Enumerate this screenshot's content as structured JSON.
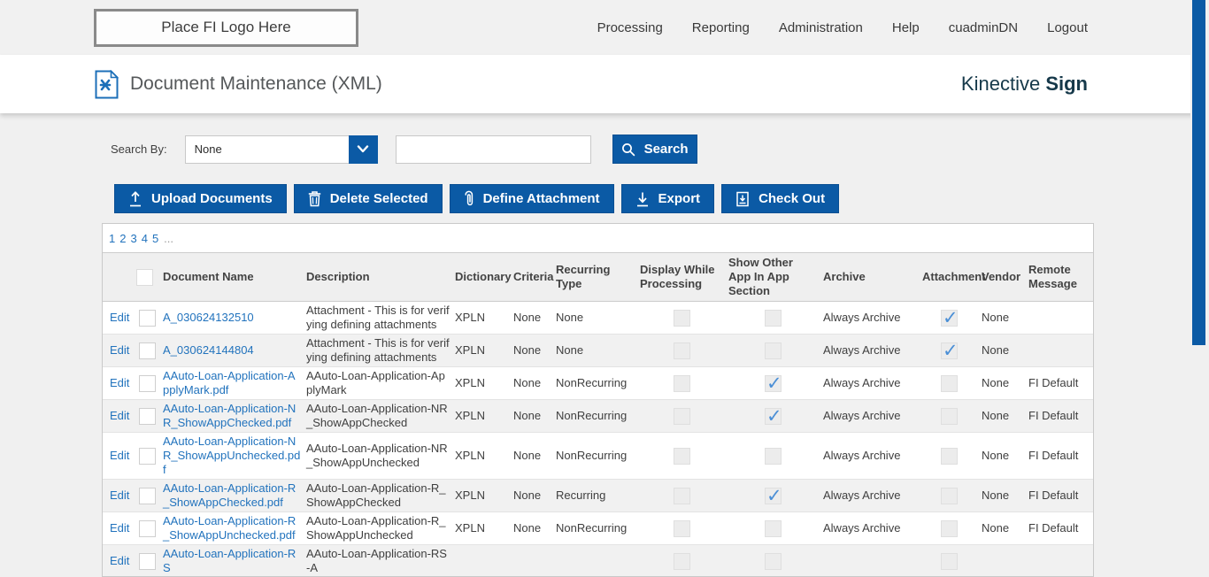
{
  "topbar": {
    "logo_text": "Place FI Logo Here",
    "nav": [
      {
        "label": "Processing"
      },
      {
        "label": "Reporting"
      },
      {
        "label": "Administration"
      },
      {
        "label": "Help"
      },
      {
        "label": "cuadminDN"
      },
      {
        "label": "Logout"
      }
    ]
  },
  "header": {
    "title": "Document Maintenance (XML)",
    "brand_regular": "Kinective",
    "brand_bold": "Sign"
  },
  "search": {
    "label": "Search By:",
    "dropdown_value": "None",
    "input_value": "",
    "button_label": "Search"
  },
  "toolbar": {
    "upload_label": "Upload Documents",
    "delete_label": "Delete Selected",
    "attachment_label": "Define Attachment",
    "export_label": "Export",
    "checkout_label": "Check Out"
  },
  "pagination": {
    "pages": [
      "1",
      "2",
      "3",
      "4",
      "5"
    ],
    "ellipsis": "..."
  },
  "table": {
    "edit_label": "Edit",
    "columns": [
      "",
      "",
      "Document Name",
      "Description",
      "Dictionary",
      "Criteria",
      "Recurring Type",
      "Display While Processing",
      "Show Other App In App Section",
      "Archive",
      "Attachment",
      "Vendor",
      "Remote Message"
    ],
    "rows": [
      {
        "name": "A_030624132510",
        "description": "Attachment - This is for verifying defining attachments",
        "dictionary": "XPLN",
        "criteria": "None",
        "recurring_type": "None",
        "display_while_processing": false,
        "show_other_app": false,
        "archive": "Always Archive",
        "attachment": true,
        "vendor": "None",
        "remote_message": ""
      },
      {
        "name": "A_030624144804",
        "description": "Attachment - This is for verifying defining attachments",
        "dictionary": "XPLN",
        "criteria": "None",
        "recurring_type": "None",
        "display_while_processing": false,
        "show_other_app": false,
        "archive": "Always Archive",
        "attachment": true,
        "vendor": "None",
        "remote_message": ""
      },
      {
        "name": "AAuto-Loan-Application-ApplyMark.pdf",
        "description": "AAuto-Loan-Application-ApplyMark",
        "dictionary": "XPLN",
        "criteria": "None",
        "recurring_type": "NonRecurring",
        "display_while_processing": false,
        "show_other_app": true,
        "archive": "Always Archive",
        "attachment": false,
        "vendor": "None",
        "remote_message": "FI Default"
      },
      {
        "name": "AAuto-Loan-Application-NR_ShowAppChecked.pdf",
        "description": "AAuto-Loan-Application-NR_ShowAppChecked",
        "dictionary": "XPLN",
        "criteria": "None",
        "recurring_type": "NonRecurring",
        "display_while_processing": false,
        "show_other_app": true,
        "archive": "Always Archive",
        "attachment": false,
        "vendor": "None",
        "remote_message": "FI Default"
      },
      {
        "name": "AAuto-Loan-Application-NR_ShowAppUnchecked.pdf",
        "description": "AAuto-Loan-Application-NR_ShowAppUnchecked",
        "dictionary": "XPLN",
        "criteria": "None",
        "recurring_type": "NonRecurring",
        "display_while_processing": false,
        "show_other_app": false,
        "archive": "Always Archive",
        "attachment": false,
        "vendor": "None",
        "remote_message": "FI Default"
      },
      {
        "name": "AAuto-Loan-Application-R_ShowAppChecked.pdf",
        "description": "AAuto-Loan-Application-R_ShowAppChecked",
        "dictionary": "XPLN",
        "criteria": "None",
        "recurring_type": "Recurring",
        "display_while_processing": false,
        "show_other_app": true,
        "archive": "Always Archive",
        "attachment": false,
        "vendor": "None",
        "remote_message": "FI Default"
      },
      {
        "name": "AAuto-Loan-Application-R_ShowAppUnchecked.pdf",
        "description": "AAuto-Loan-Application-R_ShowAppUnchecked",
        "dictionary": "XPLN",
        "criteria": "None",
        "recurring_type": "NonRecurring",
        "display_while_processing": false,
        "show_other_app": false,
        "archive": "Always Archive",
        "attachment": false,
        "vendor": "None",
        "remote_message": "FI Default"
      },
      {
        "partial": true,
        "name": "AAuto-Loan-Application-RS",
        "description": "AAuto-Loan-Application-RS-A",
        "dictionary": "",
        "criteria": "",
        "recurring_type": "",
        "display_while_processing": false,
        "show_other_app": false,
        "archive": "",
        "attachment": false,
        "vendor": "",
        "remote_message": ""
      }
    ]
  },
  "icons": {
    "checkmark": "✓"
  },
  "colors": {
    "accent_blue": "#0b5aa5",
    "link_blue": "#2273bd",
    "brand_dark": "#16394a",
    "check_blue": "#4b8fd6",
    "topbar_gray": "#f1f1f1",
    "row_alt_gray": "#f1f1f1"
  }
}
